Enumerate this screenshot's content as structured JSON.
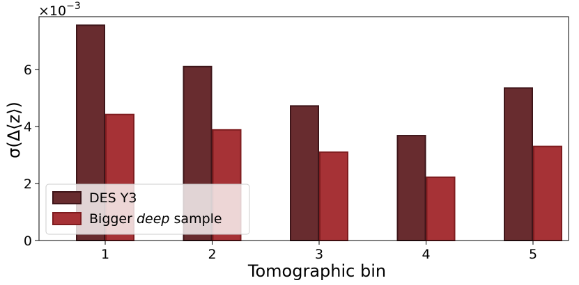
{
  "chart_data": {
    "type": "bar",
    "xlabel": "Tomographic bin",
    "ylabel_base": "σ(Δ⟨z⟩)",
    "y_offset_text": "×10",
    "y_offset_exponent": "−3",
    "categories": [
      "1",
      "2",
      "3",
      "4",
      "5"
    ],
    "yticks": [
      0,
      2,
      4,
      6
    ],
    "ylim": [
      0,
      7.85
    ],
    "series": [
      {
        "name": "DES Y3",
        "values": [
          7.55,
          6.1,
          4.72,
          3.68,
          5.35
        ],
        "color": "#682c2f",
        "edge": "#3e1519"
      },
      {
        "name_parts": [
          "Bigger ",
          "deep",
          " sample"
        ],
        "values": [
          4.42,
          3.88,
          3.1,
          2.22,
          3.3
        ],
        "color": "#a63236",
        "edge": "#7e1c1f"
      }
    ],
    "legend_location": "lower-left",
    "grid": false
  }
}
